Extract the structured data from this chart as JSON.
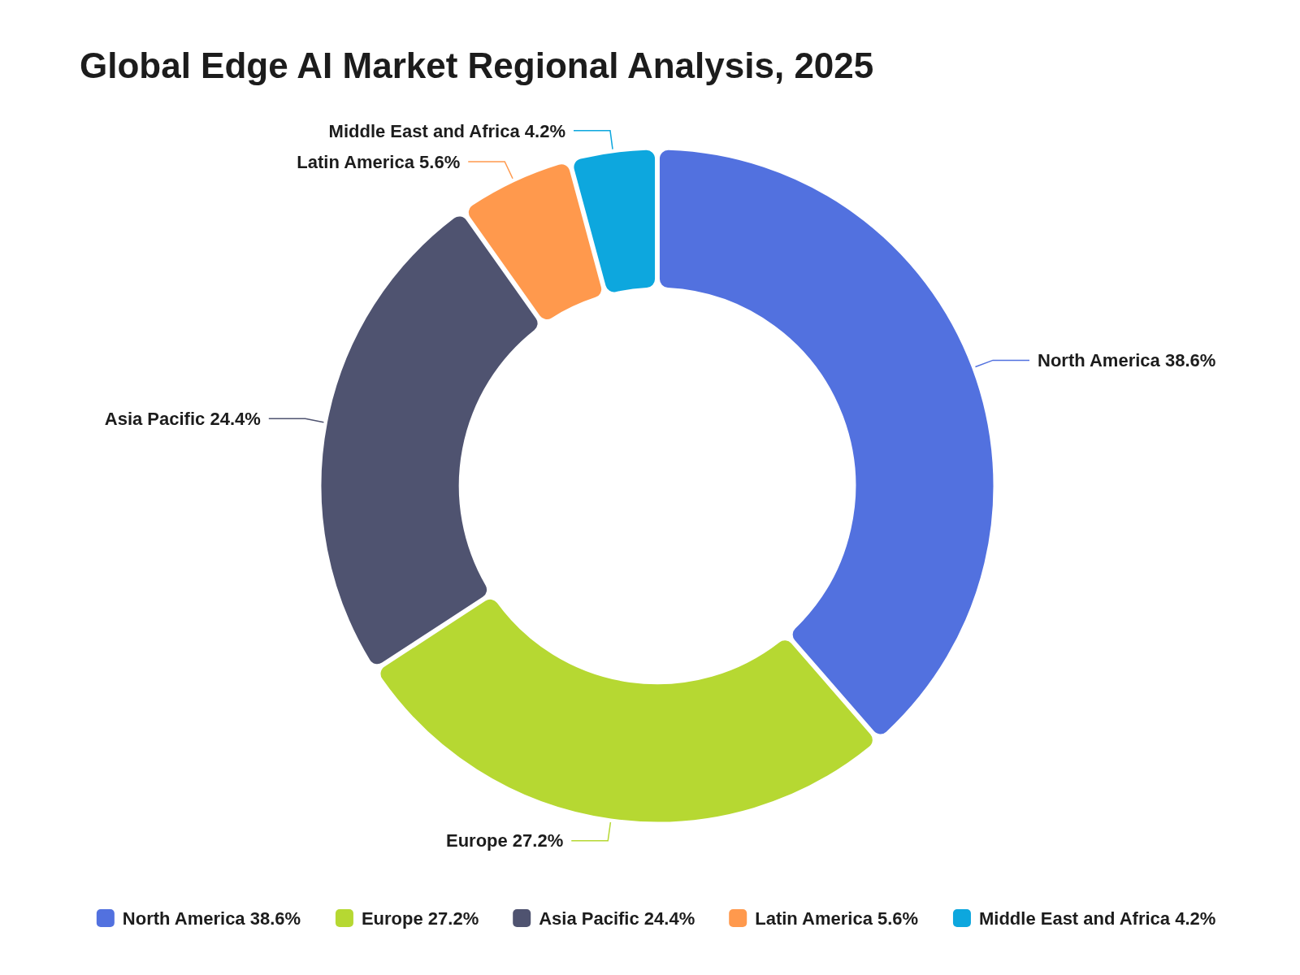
{
  "chart_data": {
    "type": "donut",
    "title": "Global Edge AI Market Regional Analysis, 2025",
    "categories": [
      "North America",
      "Europe",
      "Asia Pacific",
      "Latin America",
      "Middle East and Africa"
    ],
    "values": [
      38.6,
      27.2,
      24.4,
      5.6,
      4.2
    ],
    "value_labels": [
      "38.6%",
      "27.2%",
      "24.4%",
      "5.6%",
      "4.2%"
    ],
    "colors": [
      "#5271df",
      "#b6d832",
      "#4f5370",
      "#ff994d",
      "#0da7de"
    ],
    "legend": "bottom"
  }
}
